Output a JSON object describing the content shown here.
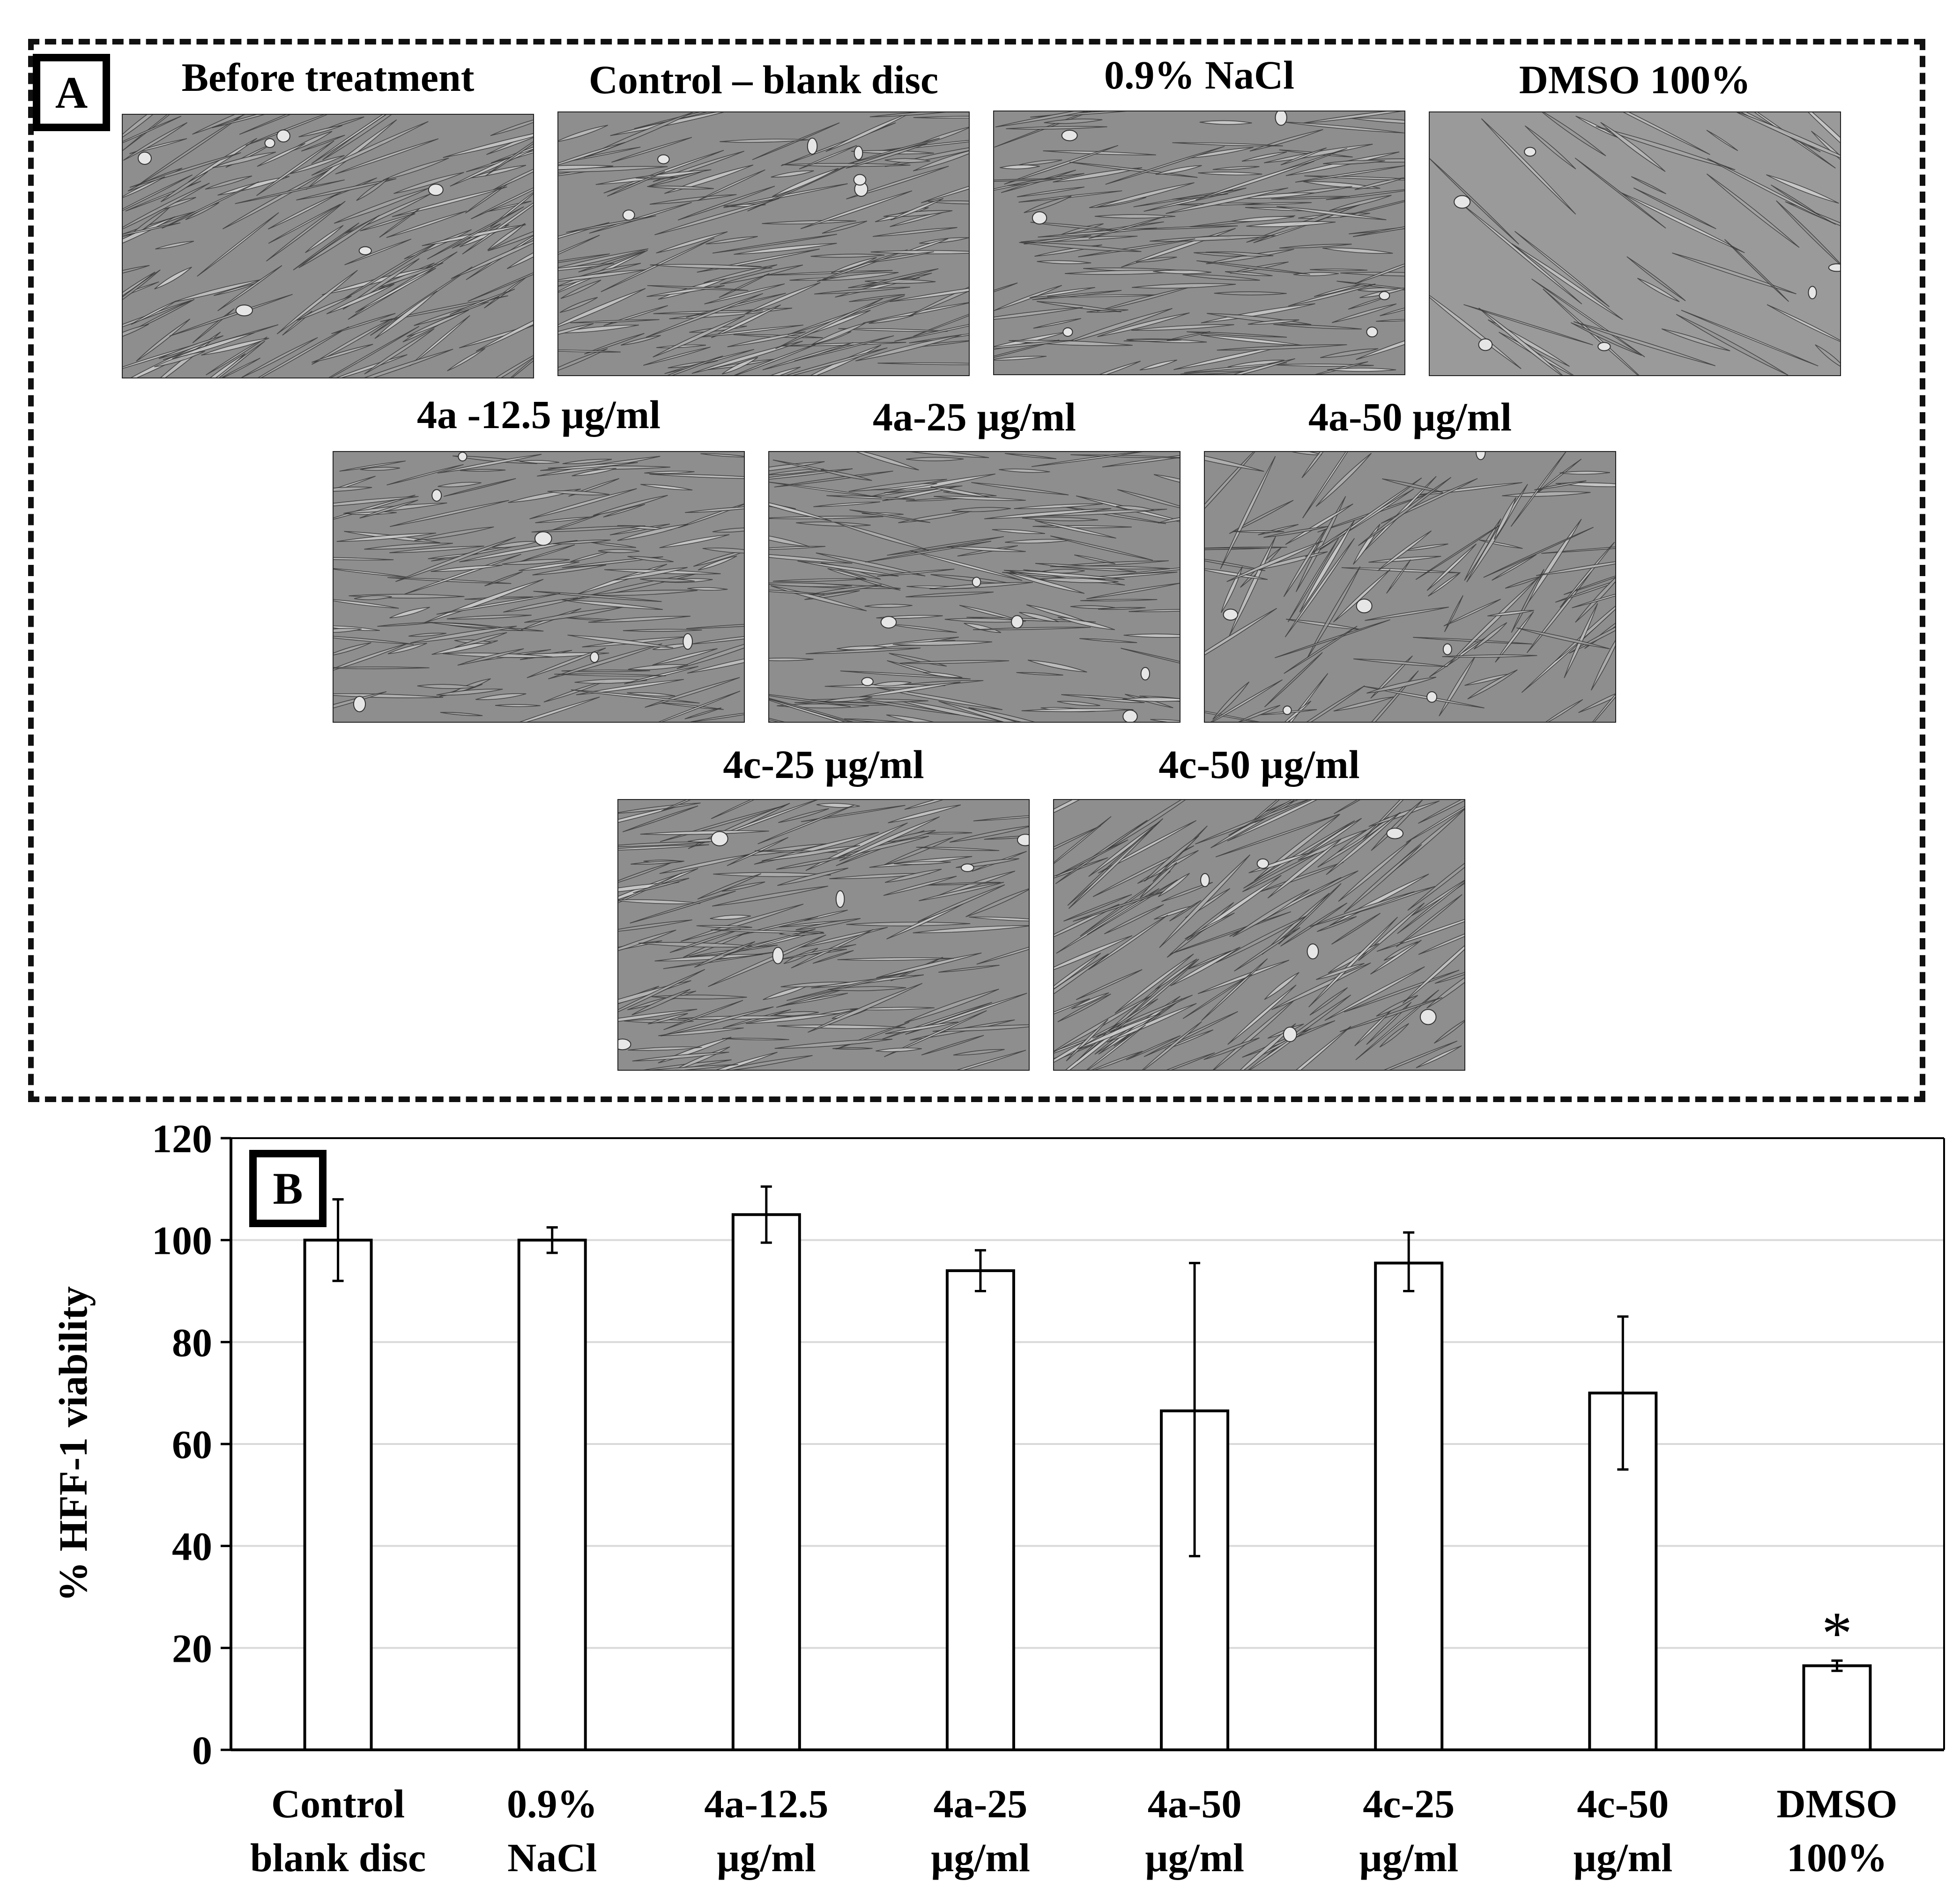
{
  "panel_a": {
    "letter": "A",
    "images": [
      {
        "label": "Before treatment",
        "name": "micrograph-before-treatment",
        "variant": "dense"
      },
      {
        "label": "Control – blank disc",
        "name": "micrograph-control-blank-disc",
        "variant": "dense"
      },
      {
        "label": "0.9% NaCl",
        "name": "micrograph-nacl",
        "variant": "horizontal"
      },
      {
        "label": "DMSO 100%",
        "name": "micrograph-dmso",
        "variant": "sparse"
      },
      {
        "label": "4a -12.5 µg/ml",
        "name": "micrograph-4a-12-5",
        "variant": "horizontal"
      },
      {
        "label": "4a-25 µg/ml",
        "name": "micrograph-4a-25",
        "variant": "dense"
      },
      {
        "label": "4a-50 µg/ml",
        "name": "micrograph-4a-50",
        "variant": "mixed"
      },
      {
        "label": "4c-25 µg/ml",
        "name": "micrograph-4c-25",
        "variant": "dense"
      },
      {
        "label": "4c-50 µg/ml",
        "name": "micrograph-4c-50",
        "variant": "fan"
      }
    ]
  },
  "panel_b": {
    "letter": "B",
    "significance_marker": "*"
  },
  "chart_data": {
    "type": "bar",
    "categories": [
      [
        "Control",
        "blank disc"
      ],
      [
        "0.9%",
        "NaCl"
      ],
      [
        "4a-12.5",
        "µg/ml"
      ],
      [
        "4a-25",
        "µg/ml"
      ],
      [
        "4a-50",
        "µg/ml"
      ],
      [
        "4c-25",
        "µg/ml"
      ],
      [
        "4c-50",
        "µg/ml"
      ],
      [
        "DMSO",
        "100%"
      ]
    ],
    "values": [
      100,
      100,
      105,
      94,
      66.5,
      95.5,
      70,
      16.5
    ],
    "error_low": [
      92,
      97.5,
      99.5,
      90,
      38,
      90,
      55,
      15.5
    ],
    "error_high": [
      108,
      102.5,
      110.5,
      98,
      95.5,
      101.5,
      85,
      17.5
    ],
    "significant": [
      false,
      false,
      false,
      false,
      false,
      false,
      false,
      true
    ],
    "ylabel": "% HFF-1 viability",
    "xlabel": "",
    "ylim": [
      0,
      120
    ],
    "yticks": [
      0,
      20,
      40,
      60,
      80,
      100,
      120
    ],
    "grid": true,
    "colors": {
      "bar_fill": "#ffffff",
      "bar_stroke": "#000000",
      "grid": "#d9d9d9"
    }
  }
}
